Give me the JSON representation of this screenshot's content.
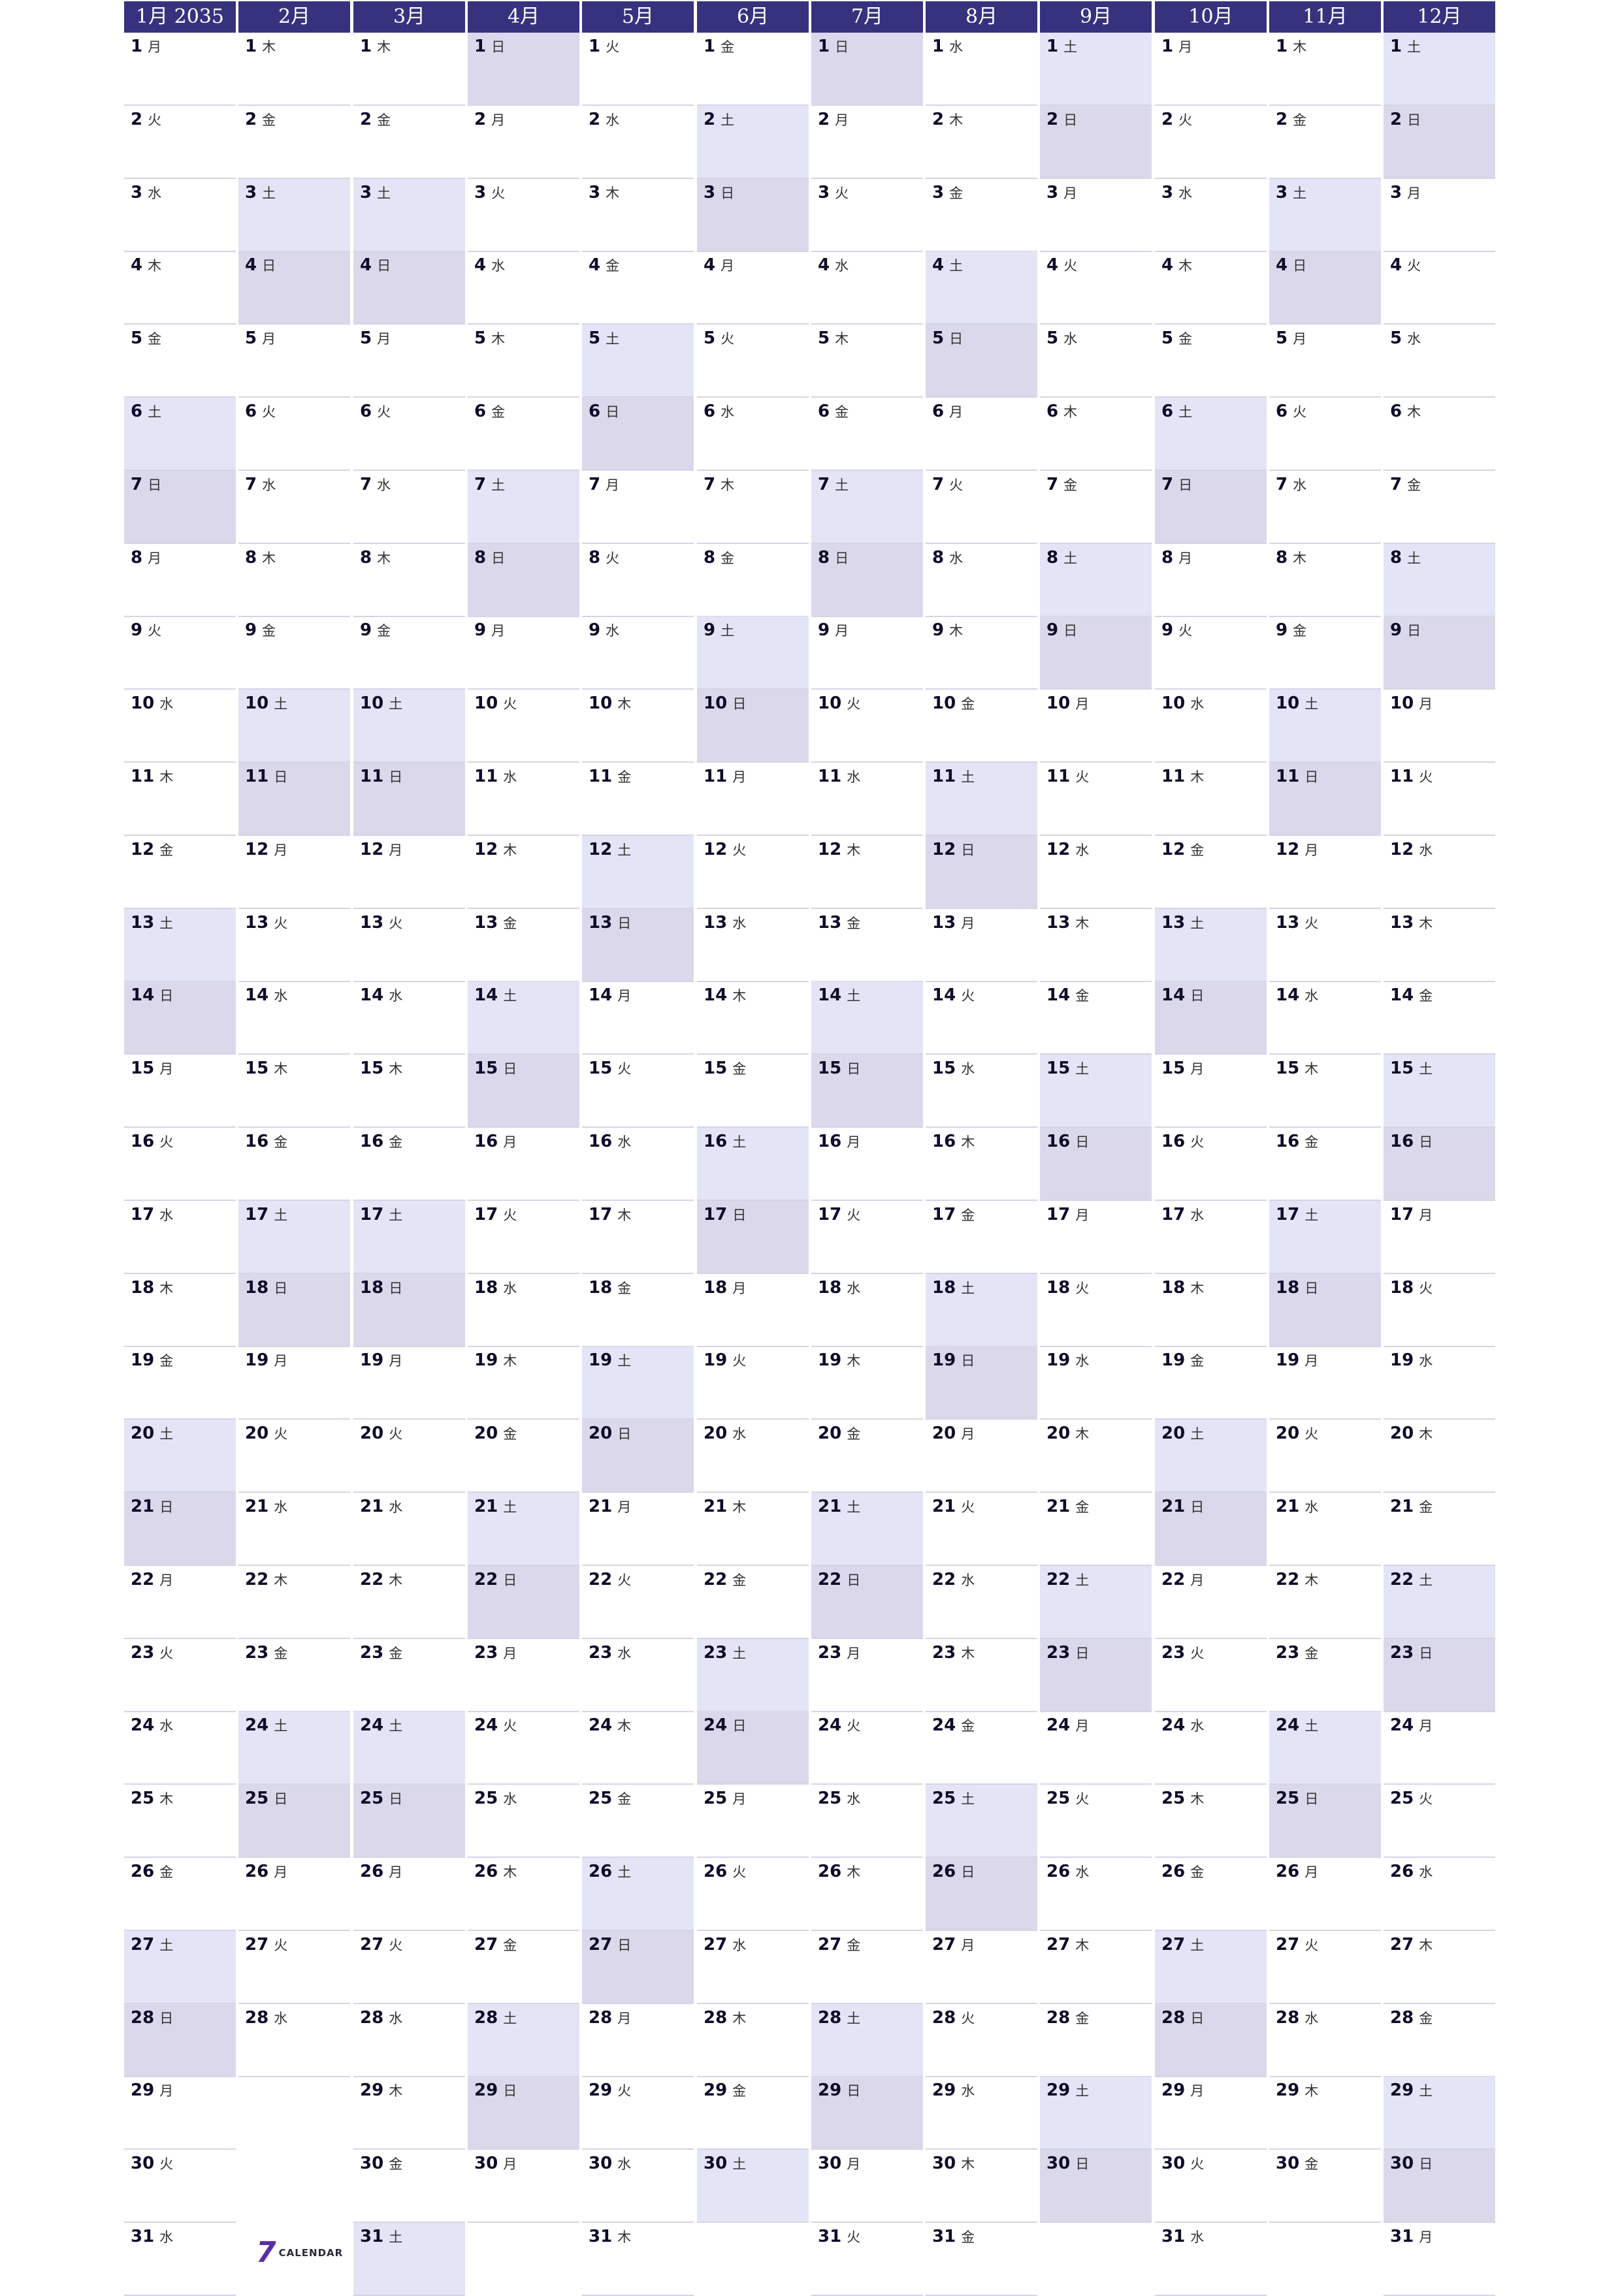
{
  "calendar": {
    "year": "2035",
    "weekday_names": [
      "日",
      "月",
      "火",
      "水",
      "木",
      "金",
      "土"
    ],
    "month_headers": [
      "1月 2035",
      "2月",
      "3月",
      "4月",
      "5月",
      "6月",
      "7月",
      "8月",
      "9月",
      "10月",
      "11月",
      "12月"
    ],
    "month_lengths": [
      31,
      28,
      31,
      30,
      31,
      30,
      31,
      31,
      30,
      31,
      30,
      31
    ],
    "first_weekday_index": [
      1,
      4,
      4,
      0,
      2,
      5,
      0,
      3,
      6,
      1,
      4,
      6
    ],
    "colors": {
      "header": "#37327e",
      "saturday": "#e4e4f7",
      "sunday": "#dcd8ec",
      "row_line": "#d6d4e4"
    }
  },
  "logo": {
    "mark": "7",
    "text": "CALENDAR"
  }
}
